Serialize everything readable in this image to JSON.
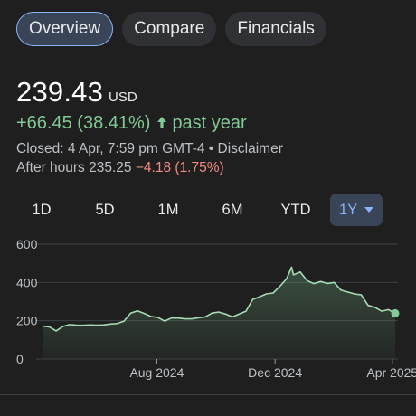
{
  "tabs": [
    {
      "label": "Overview",
      "active": true
    },
    {
      "label": "Compare",
      "active": false
    },
    {
      "label": "Financials",
      "active": false
    }
  ],
  "quote": {
    "price": "239.43",
    "currency": "USD",
    "change": "+66.45 (38.41%)",
    "period": "past year",
    "closed": "Closed: 4 Apr, 7:59 pm GMT-4 • Disclaimer",
    "after_hours_label": "After hours 235.25",
    "after_hours_change": "−4.18 (1.75%)"
  },
  "ranges": [
    "1D",
    "5D",
    "1M",
    "6M",
    "YTD",
    "1Y"
  ],
  "selected_range": "1Y",
  "colors": {
    "accent": "#8ab4f8",
    "positive": "#81c995",
    "negative": "#f28b82",
    "line": "#a8dab5"
  },
  "icons": {
    "change_direction": "arrow-up-icon",
    "range_menu": "caret-down-icon"
  },
  "chart_data": {
    "type": "area",
    "ylim": [
      0,
      600
    ],
    "yticks": [
      "0",
      "200",
      "400",
      "600"
    ],
    "xticks": [
      {
        "label": "Aug 2024",
        "date": "2024-08-01"
      },
      {
        "label": "Dec 2024",
        "date": "2024-12-01"
      },
      {
        "label": "Apr 2025",
        "date": "2025-04-01"
      }
    ],
    "x": [
      "2024-04-05",
      "2024-04-12",
      "2024-04-19",
      "2024-04-26",
      "2024-05-03",
      "2024-05-10",
      "2024-05-17",
      "2024-05-24",
      "2024-05-31",
      "2024-06-07",
      "2024-06-14",
      "2024-06-21",
      "2024-06-28",
      "2024-07-05",
      "2024-07-12",
      "2024-07-19",
      "2024-07-26",
      "2024-08-02",
      "2024-08-09",
      "2024-08-16",
      "2024-08-23",
      "2024-08-30",
      "2024-09-06",
      "2024-09-13",
      "2024-09-20",
      "2024-09-27",
      "2024-10-04",
      "2024-10-11",
      "2024-10-18",
      "2024-10-25",
      "2024-11-01",
      "2024-11-08",
      "2024-11-15",
      "2024-11-22",
      "2024-11-29",
      "2024-12-06",
      "2024-12-13",
      "2024-12-18",
      "2024-12-20",
      "2024-12-27",
      "2025-01-03",
      "2025-01-10",
      "2025-01-17",
      "2025-01-24",
      "2025-01-31",
      "2025-02-07",
      "2025-02-14",
      "2025-02-21",
      "2025-02-28",
      "2025-03-07",
      "2025-03-14",
      "2025-03-21",
      "2025-03-28",
      "2025-04-04"
    ],
    "values": [
      172,
      168,
      147,
      170,
      180,
      177,
      176,
      178,
      177,
      178,
      183,
      185,
      197,
      240,
      252,
      238,
      222,
      218,
      198,
      214,
      214,
      210,
      210,
      216,
      220,
      240,
      245,
      235,
      220,
      235,
      250,
      312,
      325,
      340,
      345,
      380,
      420,
      480,
      440,
      455,
      410,
      394,
      405,
      395,
      400,
      360,
      350,
      340,
      335,
      280,
      270,
      250,
      258,
      239
    ]
  }
}
